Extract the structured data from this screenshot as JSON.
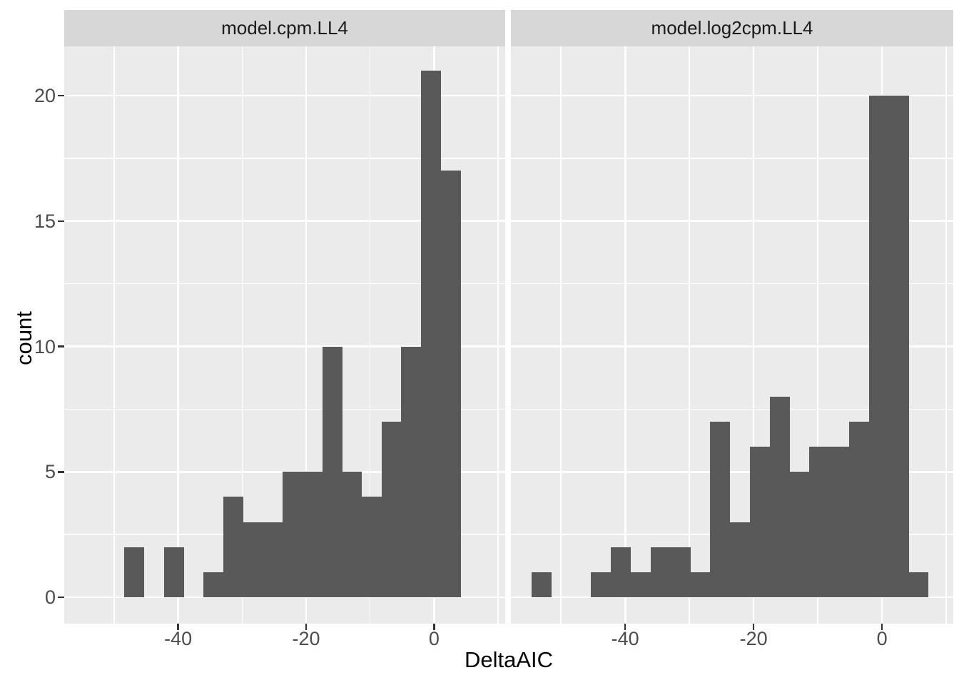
{
  "chart_data": {
    "type": "bar",
    "subtype": "faceted_histogram",
    "title": "",
    "xlabel": "DeltaAIC",
    "ylabel": "count",
    "x_domain": [
      -57.8,
      11.1
    ],
    "y_domain": [
      -1.05,
      21.96
    ],
    "bin_start": -54.58,
    "bin_width": 3.09,
    "x_ticks": [
      {
        "value": -40,
        "label": "-40"
      },
      {
        "value": -20,
        "label": "-20"
      },
      {
        "value": 0,
        "label": "0"
      }
    ],
    "y_ticks": [
      {
        "value": 0,
        "label": "0"
      },
      {
        "value": 5,
        "label": "5"
      },
      {
        "value": 10,
        "label": "10"
      },
      {
        "value": 15,
        "label": "15"
      },
      {
        "value": 20,
        "label": "20"
      }
    ],
    "x_minor_gridlines": [
      -50,
      -30,
      -10,
      10
    ],
    "y_minor_gridlines": [
      2.5,
      7.5,
      12.5,
      17.5
    ],
    "grid": true,
    "legend": "none",
    "panels": [
      {
        "label": "model.cpm.LL4",
        "counts": [
          0,
          0,
          2,
          0,
          2,
          0,
          1,
          4,
          3,
          3,
          5,
          5,
          10,
          5,
          4,
          7,
          10,
          21,
          17,
          0
        ]
      },
      {
        "label": "model.log2cpm.LL4",
        "counts": [
          1,
          0,
          0,
          1,
          2,
          1,
          2,
          2,
          1,
          7,
          3,
          6,
          8,
          5,
          6,
          6,
          7,
          20,
          20,
          1
        ]
      }
    ],
    "colors": {
      "bar": "#595959",
      "panel_background": "#ebebeb",
      "strip_background": "#d7d7d7",
      "gridline": "#ffffff",
      "tick_text": "#4d4d4d",
      "strip_text": "#1a1a1a",
      "axis_title_text": "#000000",
      "tick_mark": "#333333"
    }
  }
}
